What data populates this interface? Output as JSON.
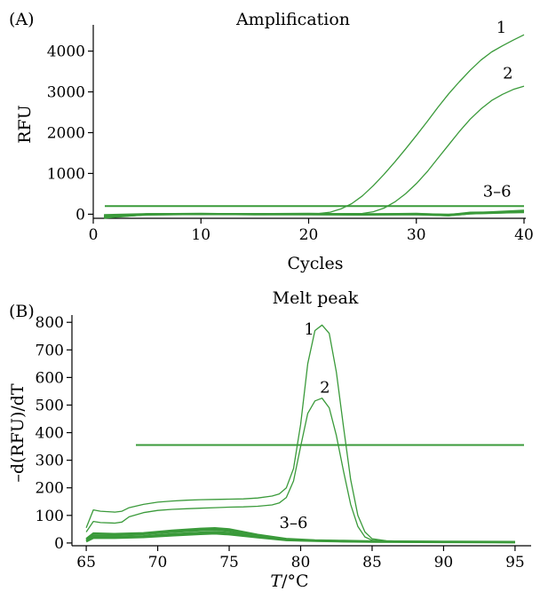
{
  "chart_data": [
    {
      "panel_label": "(A)",
      "type": "line",
      "title": "Amplification",
      "xlabel": "Cycles",
      "ylabel": "RFU",
      "xlim": [
        0,
        40
      ],
      "ylim": [
        -100,
        4600
      ],
      "xticks": [
        0,
        10,
        20,
        30,
        40
      ],
      "yticks": [
        0,
        1000,
        2000,
        3000,
        4000
      ],
      "grid": false,
      "threshold": 200,
      "color": "#3a9a3a",
      "series": [
        {
          "name": "1",
          "x": [
            1,
            5,
            10,
            15,
            20,
            21,
            22,
            23,
            24,
            25,
            26,
            27,
            28,
            29,
            30,
            31,
            32,
            33,
            34,
            35,
            36,
            37,
            38,
            39,
            40
          ],
          "y": [
            -40,
            10,
            15,
            12,
            10,
            20,
            50,
            130,
            260,
            450,
            700,
            980,
            1280,
            1600,
            1930,
            2270,
            2620,
            2950,
            3250,
            3530,
            3780,
            3980,
            4130,
            4270,
            4400
          ]
        },
        {
          "name": "2",
          "x": [
            1,
            5,
            10,
            15,
            20,
            25,
            26,
            27,
            28,
            29,
            30,
            31,
            32,
            33,
            34,
            35,
            36,
            37,
            38,
            39,
            40
          ],
          "y": [
            -50,
            5,
            10,
            8,
            8,
            20,
            60,
            150,
            300,
            500,
            750,
            1040,
            1370,
            1700,
            2030,
            2330,
            2580,
            2790,
            2940,
            3060,
            3140
          ]
        },
        {
          "name": "3",
          "x": [
            1,
            5,
            10,
            15,
            20,
            25,
            30,
            33,
            35,
            37,
            40
          ],
          "y": [
            -60,
            -10,
            5,
            0,
            -5,
            -10,
            0,
            -30,
            20,
            30,
            60
          ]
        },
        {
          "name": "4",
          "x": [
            1,
            5,
            10,
            15,
            20,
            25,
            30,
            33,
            35,
            37,
            40
          ],
          "y": [
            -90,
            0,
            10,
            -5,
            0,
            -5,
            10,
            -20,
            40,
            45,
            75
          ]
        },
        {
          "name": "5",
          "x": [
            1,
            5,
            10,
            15,
            20,
            25,
            30,
            33,
            35,
            37,
            40
          ],
          "y": [
            -20,
            5,
            0,
            5,
            10,
            0,
            5,
            -10,
            25,
            50,
            90
          ]
        },
        {
          "name": "6",
          "x": [
            1,
            5,
            10,
            15,
            20,
            25,
            30,
            33,
            35,
            37,
            40
          ],
          "y": [
            -70,
            -5,
            5,
            0,
            5,
            -5,
            -5,
            -25,
            15,
            35,
            50
          ]
        }
      ],
      "annotations": [
        {
          "text": "1",
          "x": 37.9,
          "y": 4450
        },
        {
          "text": "2",
          "x": 38.5,
          "y": 3330
        },
        {
          "text": "3–6",
          "x": 37.5,
          "y": 430
        }
      ]
    },
    {
      "panel_label": "(B)",
      "type": "line",
      "title": "Melt peak",
      "xlabel_italic": "T",
      "xlabel_rest": "/°C",
      "ylabel": "–d(RFU)/dT",
      "xlim": [
        64,
        96
      ],
      "ylim": [
        -10,
        820
      ],
      "xticks": [
        65,
        70,
        75,
        80,
        85,
        90,
        95
      ],
      "yticks": [
        0,
        100,
        200,
        300,
        400,
        500,
        600,
        700,
        800
      ],
      "grid": false,
      "threshold": 355,
      "color": "#3a9a3a",
      "series": [
        {
          "name": "1",
          "x": [
            65,
            65.5,
            66,
            67,
            67.5,
            68,
            69,
            70,
            71,
            72,
            73,
            74,
            75,
            76,
            77,
            78,
            78.5,
            79,
            79.5,
            80,
            80.5,
            81,
            81.5,
            82,
            82.5,
            83,
            83.5,
            84,
            84.5,
            85,
            86,
            88,
            90,
            95
          ],
          "y": [
            55,
            120,
            115,
            112,
            115,
            128,
            140,
            148,
            152,
            155,
            157,
            158,
            159,
            160,
            163,
            170,
            178,
            200,
            270,
            430,
            650,
            770,
            790,
            760,
            620,
            420,
            230,
            100,
            40,
            15,
            8,
            5,
            5,
            3
          ]
        },
        {
          "name": "2",
          "x": [
            65,
            65.5,
            66,
            67,
            67.5,
            68,
            69,
            70,
            71,
            72,
            73,
            74,
            75,
            76,
            77,
            78,
            78.5,
            79,
            79.5,
            80,
            80.5,
            81,
            81.5,
            82,
            82.5,
            83,
            83.5,
            84,
            84.5,
            85,
            86,
            88,
            90,
            95
          ],
          "y": [
            40,
            78,
            74,
            72,
            76,
            95,
            110,
            118,
            122,
            124,
            126,
            128,
            130,
            131,
            133,
            138,
            145,
            165,
            225,
            350,
            470,
            515,
            525,
            490,
            390,
            260,
            140,
            60,
            22,
            10,
            6,
            4,
            4,
            3
          ]
        },
        {
          "name": "3",
          "x": [
            65,
            65.5,
            67,
            69,
            71,
            73,
            74,
            75,
            77,
            79,
            81,
            83,
            85,
            90,
            95
          ],
          "y": [
            15,
            35,
            33,
            36,
            45,
            52,
            54,
            50,
            30,
            15,
            10,
            8,
            6,
            5,
            4
          ]
        },
        {
          "name": "4",
          "x": [
            65,
            65.5,
            67,
            69,
            71,
            73,
            74,
            75,
            77,
            79,
            81,
            83,
            85,
            90,
            95
          ],
          "y": [
            10,
            28,
            28,
            32,
            40,
            46,
            48,
            44,
            27,
            13,
            9,
            7,
            5,
            4,
            3
          ]
        },
        {
          "name": "5",
          "x": [
            65,
            65.5,
            67,
            69,
            71,
            73,
            74,
            75,
            77,
            79,
            81,
            83,
            85,
            90,
            95
          ],
          "y": [
            8,
            22,
            22,
            25,
            32,
            38,
            40,
            37,
            23,
            11,
            8,
            6,
            5,
            4,
            3
          ]
        },
        {
          "name": "6",
          "x": [
            65,
            65.5,
            67,
            69,
            71,
            73,
            74,
            75,
            77,
            79,
            81,
            83,
            85,
            90,
            95
          ],
          "y": [
            5,
            18,
            18,
            21,
            27,
            32,
            34,
            31,
            20,
            10,
            7,
            5,
            4,
            3,
            2
          ]
        }
      ],
      "annotations": [
        {
          "text": "1",
          "x": 80.6,
          "y": 755
        },
        {
          "text": "2",
          "x": 81.7,
          "y": 545
        },
        {
          "text": "3–6",
          "x": 79.5,
          "y": 55
        }
      ]
    }
  ]
}
